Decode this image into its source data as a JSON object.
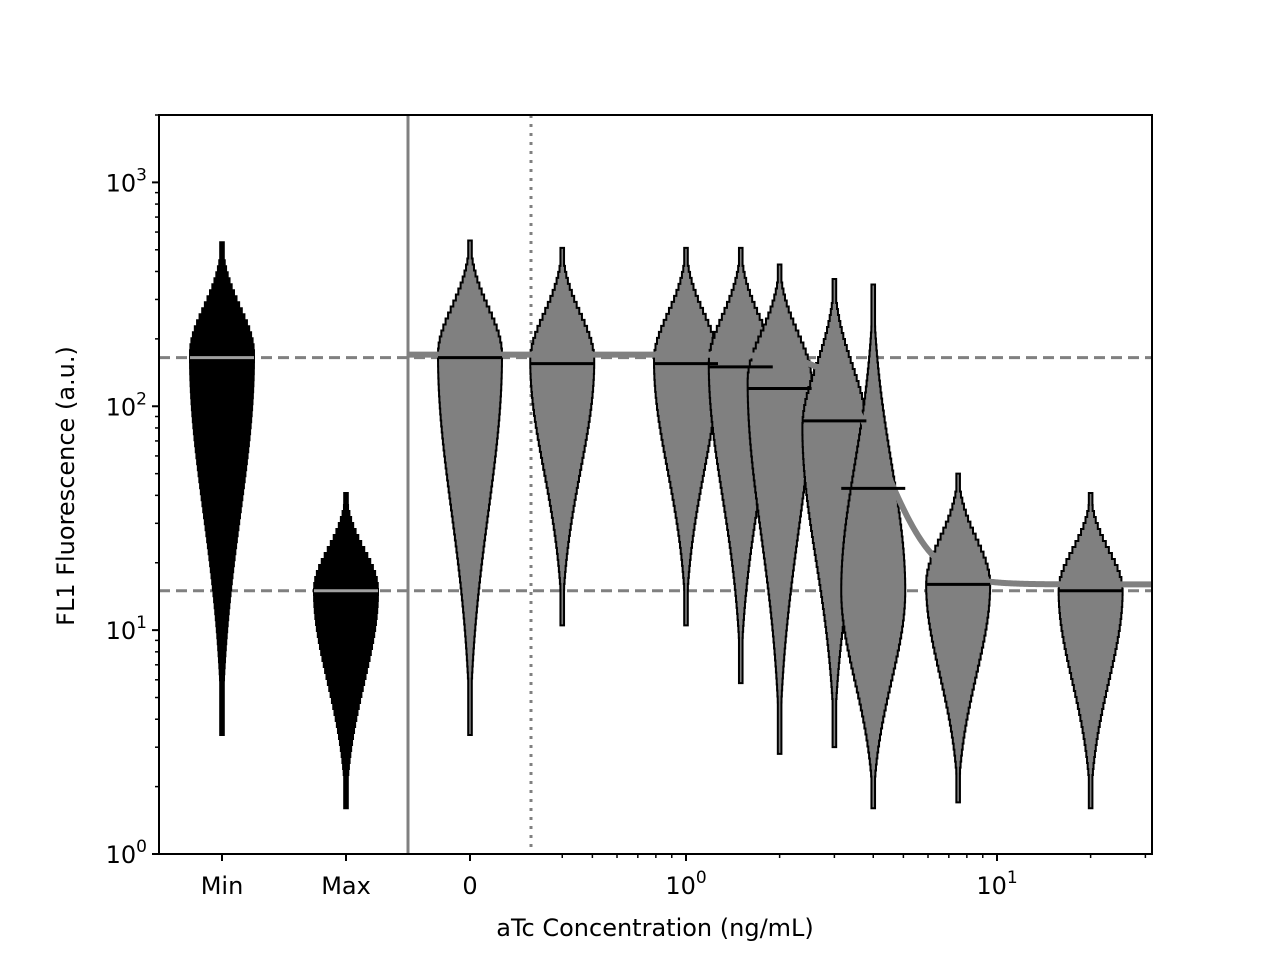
{
  "chart_data": {
    "type": "violin",
    "xlabel": "aTc Concentration (ng/mL)",
    "ylabel": "FL1 Fluorescence (a.u.)",
    "y_scale": "log",
    "ylim": [
      1,
      2000
    ],
    "x_scale": "symlog",
    "xlim_data_approx": [
      0,
      35
    ],
    "y_tick_labels": [
      {
        "base": "10",
        "exp": "0",
        "value": 1
      },
      {
        "base": "10",
        "exp": "1",
        "value": 10
      },
      {
        "base": "10",
        "exp": "2",
        "value": 100
      },
      {
        "base": "10",
        "exp": "3",
        "value": 1000
      }
    ],
    "x_tick_labels": [
      {
        "text": "Min",
        "kind": "category"
      },
      {
        "text": "Max",
        "kind": "category"
      },
      {
        "text": "0",
        "kind": "value",
        "value": 0
      },
      {
        "base": "10",
        "exp": "0",
        "kind": "value",
        "value": 1
      },
      {
        "base": "10",
        "exp": "1",
        "kind": "value",
        "value": 10
      }
    ],
    "colors": {
      "control_violin": "#000000",
      "sample_violin": "#808080",
      "model_line": "#808080",
      "reference_lines": "#808080",
      "sample_median": "#000000",
      "control_median": "#a0a0a0"
    },
    "reference_lines": {
      "min_median": 165,
      "max_median": 15,
      "linear_threshold_x": 0.25
    },
    "controls": [
      {
        "name": "Min",
        "median": 165,
        "y_min": 3.4,
        "y_max": 540,
        "peak": 170,
        "spread": 0.5
      },
      {
        "name": "Max",
        "median": 15,
        "y_min": 1.6,
        "y_max": 41,
        "peak": 15,
        "spread": 0.5
      }
    ],
    "samples": [
      {
        "x": 0,
        "median": 165,
        "y_min": 3.4,
        "y_max": 550,
        "peak": 170,
        "spread": 0.5
      },
      {
        "x": 0.4,
        "median": 155,
        "y_min": 10.5,
        "y_max": 510,
        "peak": 160,
        "spread": 0.5
      },
      {
        "x": 1.0,
        "median": 155,
        "y_min": 10.5,
        "y_max": 510,
        "peak": 160,
        "spread": 0.5
      },
      {
        "x": 1.5,
        "median": 150,
        "y_min": 5.8,
        "y_max": 510,
        "peak": 155,
        "spread": 0.5
      },
      {
        "x": 2.0,
        "median": 120,
        "y_min": 2.8,
        "y_max": 430,
        "peak": 130,
        "spread": 0.5
      },
      {
        "x": 3.0,
        "median": 86,
        "y_min": 3.0,
        "y_max": 370,
        "peak": 80,
        "spread": 0.5
      },
      {
        "x": 4.0,
        "median": 43,
        "y_min": 1.6,
        "y_max": 350,
        "peak": 15,
        "spread": 0.5
      },
      {
        "x": 7.5,
        "median": 16,
        "y_min": 1.7,
        "y_max": 50,
        "peak": 16,
        "spread": 0.5
      },
      {
        "x": 20,
        "median": 15,
        "y_min": 1.6,
        "y_max": 41,
        "peak": 15,
        "spread": 0.5
      }
    ],
    "model": {
      "form": "hill",
      "top": 170,
      "bottom": 16,
      "k": 3.6,
      "n": 6
    }
  }
}
